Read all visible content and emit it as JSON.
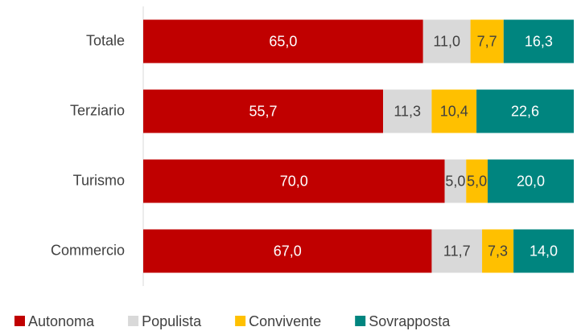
{
  "chart_data": {
    "type": "stacked-bar-horizontal",
    "categories": [
      "Totale",
      "Terziario",
      "Turismo",
      "Commercio"
    ],
    "xlim": [
      0,
      100
    ],
    "series": [
      {
        "name": "Autonoma",
        "color": "#c00000",
        "values": [
          65.0,
          55.7,
          70.0,
          67.0
        ],
        "value_labels": [
          "65,0",
          "55,7",
          "70,0",
          "67,0"
        ]
      },
      {
        "name": "Populista",
        "color": "#d9d9d9",
        "values": [
          11.0,
          11.3,
          5.0,
          11.7
        ],
        "value_labels": [
          "11,0",
          "11,3",
          "5,0",
          "11,7"
        ]
      },
      {
        "name": "Convivente",
        "color": "#ffc000",
        "values": [
          7.7,
          10.4,
          5.0,
          7.3
        ],
        "value_labels": [
          "7,7",
          "10,4",
          "5,0",
          "7,3"
        ]
      },
      {
        "name": "Sovrapposta",
        "color": "#00857f",
        "values": [
          16.3,
          22.6,
          20.0,
          14.0
        ],
        "value_labels": [
          "16,3",
          "22,6",
          "20,0",
          "14,0"
        ]
      }
    ],
    "legend": "bottom"
  }
}
